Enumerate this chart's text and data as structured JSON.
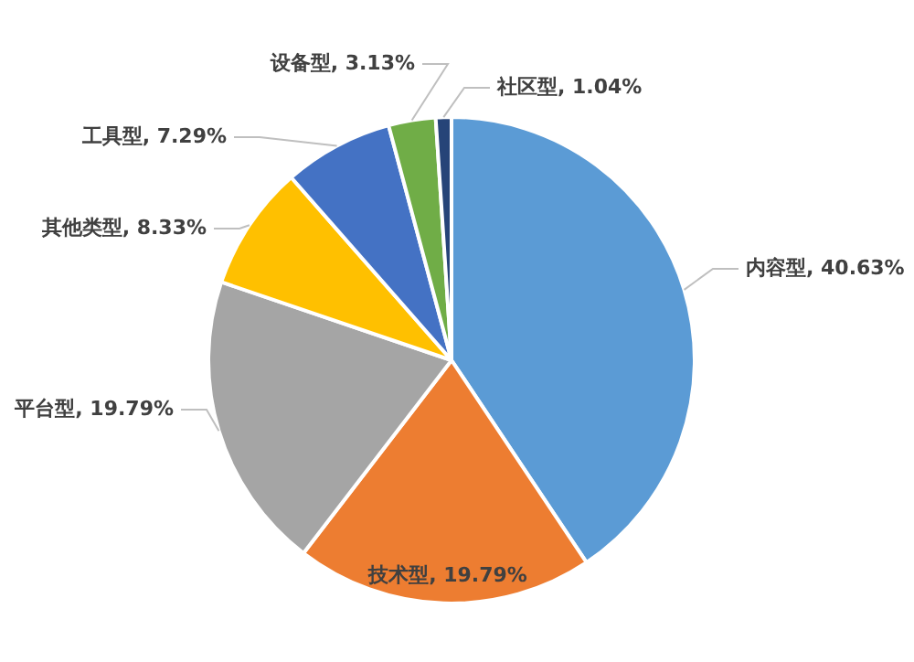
{
  "chart_data": {
    "type": "pie",
    "categories": [
      "内容型",
      "技术型",
      "平台型",
      "其他类型",
      "工具型",
      "设备型",
      "社区型"
    ],
    "values": [
      40.63,
      19.79,
      19.79,
      8.33,
      7.29,
      3.13,
      1.04
    ],
    "colors": [
      "#5b9bd5",
      "#ed7d31",
      "#a5a5a5",
      "#ffc000",
      "#4472c4",
      "#70ad47",
      "#264478"
    ],
    "value_labels": [
      "40.63%",
      "19.79%",
      "19.79%",
      "8.33%",
      "7.29%",
      "3.13%",
      "1.04%"
    ],
    "legend": false
  }
}
